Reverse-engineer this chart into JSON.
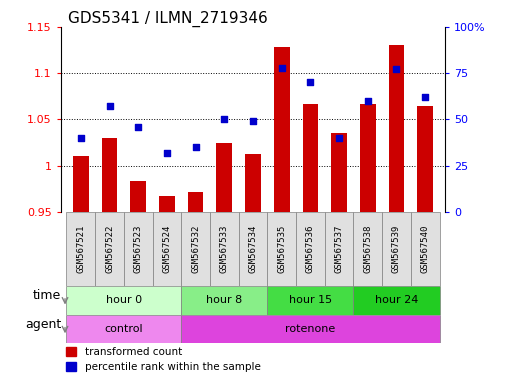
{
  "title": "GDS5341 / ILMN_2719346",
  "samples": [
    "GSM567521",
    "GSM567522",
    "GSM567523",
    "GSM567524",
    "GSM567532",
    "GSM567533",
    "GSM567534",
    "GSM567535",
    "GSM567536",
    "GSM567537",
    "GSM567538",
    "GSM567539",
    "GSM567540"
  ],
  "transformed_count": [
    1.01,
    1.03,
    0.983,
    0.967,
    0.972,
    1.025,
    1.013,
    1.128,
    1.067,
    1.035,
    1.067,
    1.13,
    1.065
  ],
  "percentile_rank": [
    40,
    57,
    46,
    32,
    35,
    50,
    49,
    78,
    70,
    40,
    60,
    77,
    62
  ],
  "ylim_left": [
    0.95,
    1.15
  ],
  "ylim_right": [
    0,
    100
  ],
  "yticks_left": [
    0.95,
    1.0,
    1.05,
    1.1,
    1.15
  ],
  "yticks_right": [
    0,
    25,
    50,
    75,
    100
  ],
  "ytick_labels_left": [
    "0.95",
    "1",
    "1.05",
    "1.1",
    "1.15"
  ],
  "ytick_labels_right": [
    "0",
    "25",
    "50",
    "75",
    "100%"
  ],
  "bar_color": "#cc0000",
  "dot_color": "#0000cc",
  "hgrid_values": [
    1.0,
    1.05,
    1.1
  ],
  "time_groups": [
    {
      "label": "hour 0",
      "start": 0,
      "end": 4,
      "color": "#ccffcc"
    },
    {
      "label": "hour 8",
      "start": 4,
      "end": 7,
      "color": "#88ee88"
    },
    {
      "label": "hour 15",
      "start": 7,
      "end": 10,
      "color": "#44dd44"
    },
    {
      "label": "hour 24",
      "start": 10,
      "end": 13,
      "color": "#22cc22"
    }
  ],
  "agent_groups": [
    {
      "label": "control",
      "start": 0,
      "end": 4,
      "color": "#ee88ee"
    },
    {
      "label": "rotenone",
      "start": 4,
      "end": 13,
      "color": "#dd44dd"
    }
  ],
  "legend_bar_label": "transformed count",
  "legend_dot_label": "percentile rank within the sample",
  "time_label": "time",
  "agent_label": "agent",
  "bar_width": 0.55,
  "title_fontsize": 11,
  "tick_fontsize": 8,
  "sample_fontsize": 6.5,
  "row_label_fontsize": 9,
  "row_content_fontsize": 8,
  "legend_fontsize": 7.5
}
